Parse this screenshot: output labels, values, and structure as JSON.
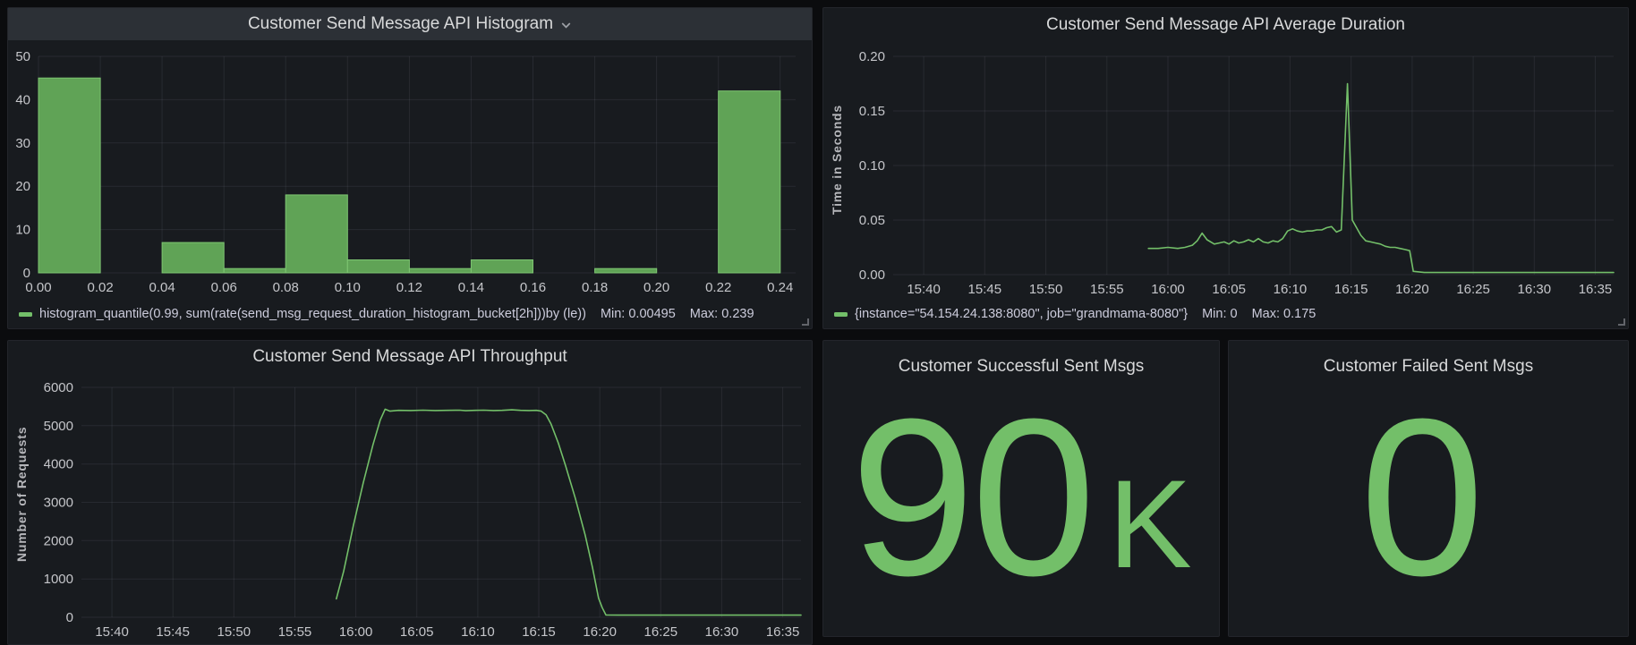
{
  "colors": {
    "green": "#73bf69",
    "bar_fill": "#60a356",
    "bar_stroke": "#7ec672",
    "panel_bg": "#181b1f",
    "header_bg": "#2c3036",
    "page_bg": "#0b0c0e",
    "grid": "rgba(204,204,220,0.09)",
    "tick_text": "#c5c6ca",
    "title_text": "#d8d9da",
    "stat_value_text": "#73bf69"
  },
  "panels": {
    "histogram": {
      "title": "Customer Send Message API Histogram",
      "legend": {
        "label": "histogram_quantile(0.99, sum(rate(send_msg_request_duration_histogram_bucket[2h]))by (le))",
        "min_label": "Min: 0.00495",
        "max_label": "Max: 0.239"
      }
    },
    "avg_duration": {
      "title": "Customer Send Message API Average Duration",
      "ylabel": "Time in Seconds",
      "legend": {
        "label": "{instance=\"54.154.24.138:8080\", job=\"grandmama-8080\"}",
        "min_label": "Min: 0",
        "max_label": "Max: 0.175"
      }
    },
    "throughput": {
      "title": "Customer Send Message API Throughput",
      "ylabel": "Number of Requests"
    },
    "stat_success": {
      "title": "Customer Successful Sent Msgs",
      "value": "90",
      "suffix": "K"
    },
    "stat_failed": {
      "title": "Customer Failed Sent Msgs",
      "value": "0",
      "suffix": ""
    }
  },
  "chart_data": [
    {
      "type": "bar",
      "title": "Customer Send Message API Histogram",
      "series_label": "histogram_quantile(0.99, sum(rate(send_msg_request_duration_histogram_bucket[2h]))by (le))",
      "min": 0.00495,
      "max": 0.239,
      "buckets": [
        {
          "x0": 0.0,
          "x1": 0.02,
          "count": 45
        },
        {
          "x0": 0.04,
          "x1": 0.06,
          "count": 7
        },
        {
          "x0": 0.06,
          "x1": 0.08,
          "count": 1
        },
        {
          "x0": 0.08,
          "x1": 0.1,
          "count": 18
        },
        {
          "x0": 0.1,
          "x1": 0.12,
          "count": 3
        },
        {
          "x0": 0.12,
          "x1": 0.14,
          "count": 1
        },
        {
          "x0": 0.14,
          "x1": 0.16,
          "count": 3
        },
        {
          "x0": 0.18,
          "x1": 0.2,
          "count": 1
        },
        {
          "x0": 0.22,
          "x1": 0.24,
          "count": 42
        }
      ],
      "xlim": [
        0,
        0.245
      ],
      "ylim": [
        0,
        50
      ],
      "x_tick_values": [
        0,
        0.02,
        0.04,
        0.06,
        0.08,
        0.1,
        0.12,
        0.14,
        0.16,
        0.18,
        0.2,
        0.22,
        0.24
      ],
      "x_tick_labels": [
        "0.00",
        "0.02",
        "0.04",
        "0.06",
        "0.08",
        "0.10",
        "0.12",
        "0.14",
        "0.16",
        "0.18",
        "0.20",
        "0.22",
        "0.24"
      ],
      "y_tick_values": [
        0,
        10,
        20,
        30,
        40,
        50
      ],
      "y_tick_labels": [
        "0",
        "10",
        "20",
        "30",
        "40",
        "50"
      ],
      "grid": true,
      "legend_position": "bottom"
    },
    {
      "type": "line",
      "title": "Customer Send Message API Average Duration",
      "ylabel": "Time in Seconds",
      "series_label": "{instance=\"54.154.24.138:8080\", job=\"grandmama-8080\"}",
      "min": 0,
      "max": 0.175,
      "x_unit": "minutes since 15:00",
      "points": [
        [
          58.4,
          0.024
        ],
        [
          59.2,
          0.024
        ],
        [
          60,
          0.025
        ],
        [
          60.8,
          0.024
        ],
        [
          61.4,
          0.025
        ],
        [
          62,
          0.027
        ],
        [
          62.4,
          0.031
        ],
        [
          62.8,
          0.038
        ],
        [
          63.2,
          0.032
        ],
        [
          63.8,
          0.028
        ],
        [
          64.2,
          0.029
        ],
        [
          64.6,
          0.03
        ],
        [
          65,
          0.028
        ],
        [
          65.4,
          0.031
        ],
        [
          65.8,
          0.029
        ],
        [
          66.2,
          0.03
        ],
        [
          66.6,
          0.032
        ],
        [
          67,
          0.03
        ],
        [
          67.4,
          0.033
        ],
        [
          67.8,
          0.03
        ],
        [
          68.2,
          0.029
        ],
        [
          68.6,
          0.031
        ],
        [
          69,
          0.03
        ],
        [
          69.4,
          0.033
        ],
        [
          69.8,
          0.04
        ],
        [
          70.2,
          0.042
        ],
        [
          70.6,
          0.04
        ],
        [
          71,
          0.039
        ],
        [
          71.4,
          0.04
        ],
        [
          71.8,
          0.04
        ],
        [
          72.2,
          0.041
        ],
        [
          72.6,
          0.041
        ],
        [
          73,
          0.043
        ],
        [
          73.4,
          0.044
        ],
        [
          73.8,
          0.039
        ],
        [
          74.2,
          0.041
        ],
        [
          74.7,
          0.175
        ],
        [
          75.1,
          0.05
        ],
        [
          75.4,
          0.044
        ],
        [
          75.8,
          0.036
        ],
        [
          76.2,
          0.031
        ],
        [
          76.6,
          0.03
        ],
        [
          77,
          0.029
        ],
        [
          77.4,
          0.028
        ],
        [
          77.8,
          0.026
        ],
        [
          78.2,
          0.025
        ],
        [
          78.6,
          0.025
        ],
        [
          79,
          0.024
        ],
        [
          79.4,
          0.023
        ],
        [
          79.8,
          0.022
        ],
        [
          80.1,
          0.003
        ],
        [
          81,
          0.002
        ],
        [
          84,
          0.002
        ],
        [
          88,
          0.002
        ],
        [
          92,
          0.002
        ],
        [
          96.5,
          0.002
        ]
      ],
      "xlim": [
        37.5,
        96.5
      ],
      "ylim": [
        0,
        0.2
      ],
      "x_tick_values": [
        40,
        45,
        50,
        55,
        60,
        65,
        70,
        75,
        80,
        85,
        90,
        95
      ],
      "x_tick_labels": [
        "15:40",
        "15:45",
        "15:50",
        "15:55",
        "16:00",
        "16:05",
        "16:10",
        "16:15",
        "16:20",
        "16:25",
        "16:30",
        "16:35"
      ],
      "y_tick_values": [
        0,
        0.05,
        0.1,
        0.15,
        0.2
      ],
      "y_tick_labels": [
        "0.00",
        "0.05",
        "0.10",
        "0.15",
        "0.20"
      ],
      "grid": true,
      "legend_position": "bottom"
    },
    {
      "type": "line",
      "title": "Customer Send Message API Throughput",
      "ylabel": "Number of Requests",
      "x_unit": "minutes since 15:00",
      "points": [
        [
          58.4,
          480
        ],
        [
          59,
          1200
        ],
        [
          59.8,
          2400
        ],
        [
          60.6,
          3500
        ],
        [
          61.4,
          4500
        ],
        [
          62,
          5150
        ],
        [
          62.4,
          5430
        ],
        [
          62.8,
          5380
        ],
        [
          63.5,
          5400
        ],
        [
          64.5,
          5395
        ],
        [
          65.5,
          5405
        ],
        [
          66.5,
          5395
        ],
        [
          67.5,
          5400
        ],
        [
          68.5,
          5405
        ],
        [
          69,
          5390
        ],
        [
          69.8,
          5400
        ],
        [
          70.5,
          5405
        ],
        [
          71.3,
          5395
        ],
        [
          72,
          5400
        ],
        [
          72.8,
          5415
        ],
        [
          73.5,
          5400
        ],
        [
          74.2,
          5395
        ],
        [
          74.8,
          5400
        ],
        [
          75.2,
          5380
        ],
        [
          75.6,
          5280
        ],
        [
          76,
          5050
        ],
        [
          76.6,
          4550
        ],
        [
          77.2,
          3950
        ],
        [
          78,
          3100
        ],
        [
          78.8,
          2150
        ],
        [
          79.4,
          1300
        ],
        [
          79.9,
          500
        ],
        [
          80.2,
          250
        ],
        [
          80.5,
          60
        ],
        [
          81.5,
          55
        ],
        [
          84,
          55
        ],
        [
          88,
          55
        ],
        [
          92,
          55
        ],
        [
          96.5,
          55
        ]
      ],
      "xlim": [
        37.5,
        96.5
      ],
      "ylim": [
        0,
        6000
      ],
      "x_tick_values": [
        40,
        45,
        50,
        55,
        60,
        65,
        70,
        75,
        80,
        85,
        90,
        95
      ],
      "x_tick_labels": [
        "15:40",
        "15:45",
        "15:50",
        "15:55",
        "16:00",
        "16:05",
        "16:10",
        "16:15",
        "16:20",
        "16:25",
        "16:30",
        "16:35"
      ],
      "y_tick_values": [
        0,
        1000,
        2000,
        3000,
        4000,
        5000,
        6000
      ],
      "y_tick_labels": [
        "0",
        "1000",
        "2000",
        "3000",
        "4000",
        "5000",
        "6000"
      ],
      "grid": true,
      "legend_position": "none"
    }
  ]
}
